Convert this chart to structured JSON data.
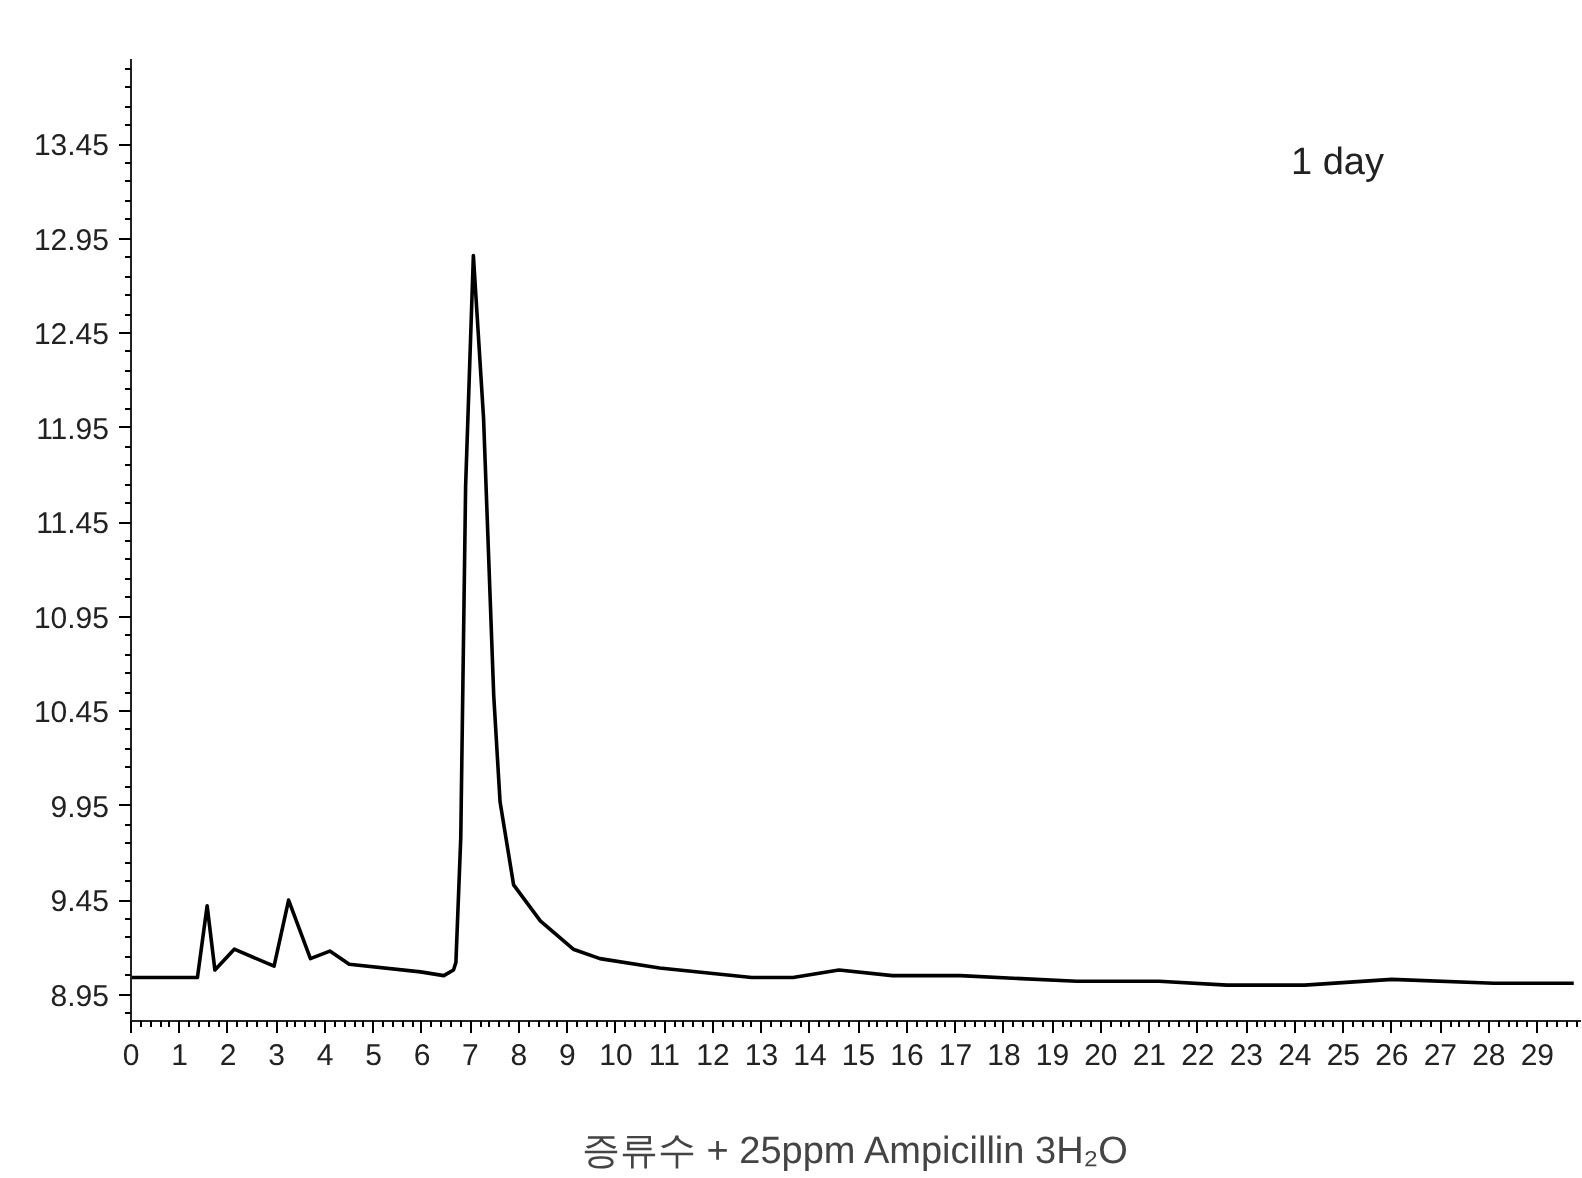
{
  "chart_data": {
    "type": "line",
    "xlabel": "증류수 + 25ppm Ampicillin 3H₂O",
    "annotations": [
      "1 day"
    ],
    "x": [
      0,
      1.37,
      1.57,
      1.73,
      2.13,
      2.95,
      3.25,
      3.7,
      4.1,
      4.5,
      5.97,
      6.45,
      6.65,
      6.7,
      6.8,
      6.9,
      7.06,
      7.27,
      7.48,
      7.61,
      7.89,
      8.44,
      9.12,
      9.67,
      10.9,
      12.8,
      13.65,
      14.6,
      15.7,
      17.1,
      19.5,
      21.2,
      22.6,
      24.2,
      26.0,
      28.1,
      29.75
    ],
    "series": [
      {
        "color": "#000000",
        "values": [
          9.04,
          9.04,
          9.42,
          9.08,
          9.19,
          9.1,
          9.45,
          9.14,
          9.18,
          9.11,
          9.07,
          9.05,
          9.08,
          9.12,
          9.78,
          11.64,
          12.86,
          12.0,
          10.53,
          9.97,
          9.53,
          9.34,
          9.19,
          9.14,
          9.09,
          9.04,
          9.04,
          9.08,
          9.05,
          9.05,
          9.02,
          9.02,
          9.0,
          9.0,
          9.03,
          9.01,
          9.01
        ]
      }
    ],
    "xlim": [
      0,
      29.9
    ],
    "ylim": [
      8.81,
      13.9
    ],
    "xticks": [
      0,
      1,
      2,
      3,
      4,
      5,
      6,
      7,
      8,
      9,
      10,
      11,
      12,
      13,
      14,
      15,
      16,
      17,
      18,
      19,
      20,
      21,
      22,
      23,
      24,
      25,
      26,
      27,
      28,
      29
    ],
    "yticks": [
      8.95,
      9.45,
      9.95,
      10.45,
      10.95,
      11.45,
      11.95,
      12.45,
      12.95,
      13.45
    ],
    "grid": false,
    "marker": "none",
    "line_style": "solid"
  }
}
